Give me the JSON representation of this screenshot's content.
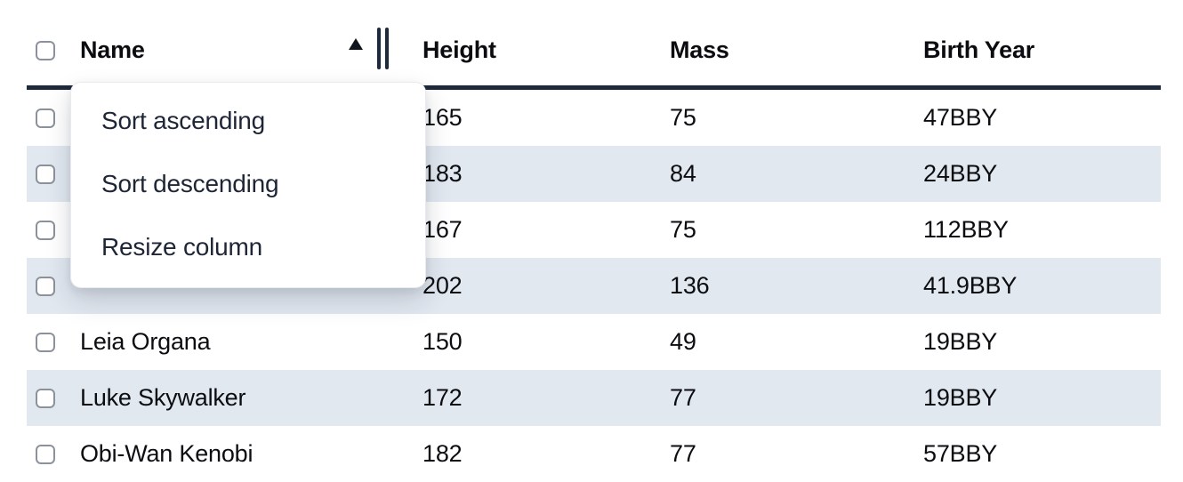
{
  "table": {
    "header": {
      "select_all_checkbox": {
        "checked": false
      },
      "columns": [
        {
          "label": "Name",
          "sort_direction": "ascending",
          "has_resize_handle": true
        },
        {
          "label": "Height"
        },
        {
          "label": "Mass"
        },
        {
          "label": "Birth Year"
        }
      ]
    },
    "rows": [
      {
        "selected": false,
        "name": "",
        "height": "165",
        "mass": "75",
        "birth_year": "47BBY"
      },
      {
        "selected": false,
        "name": "",
        "height": "183",
        "mass": "84",
        "birth_year": "24BBY"
      },
      {
        "selected": false,
        "name": "",
        "height": "167",
        "mass": "75",
        "birth_year": "112BBY"
      },
      {
        "selected": false,
        "name": "",
        "height": "202",
        "mass": "136",
        "birth_year": "41.9BBY"
      },
      {
        "selected": false,
        "name": "Leia Organa",
        "height": "150",
        "mass": "49",
        "birth_year": "19BBY"
      },
      {
        "selected": false,
        "name": "Luke Skywalker",
        "height": "172",
        "mass": "77",
        "birth_year": "19BBY"
      },
      {
        "selected": false,
        "name": "Obi-Wan Kenobi",
        "height": "182",
        "mass": "77",
        "birth_year": "57BBY"
      }
    ]
  },
  "context_menu": {
    "open_for_column": "Name",
    "items": [
      {
        "label": "Sort ascending"
      },
      {
        "label": "Sort descending"
      },
      {
        "label": "Resize column"
      }
    ]
  },
  "icons": {
    "sort_ascending_icon": "up-triangle",
    "column_resize_handle_icon": "double-vertical-bars",
    "checkbox_icon": "empty-rounded-square"
  },
  "colors": {
    "header_underline": "#1e293b",
    "row_stripe": "#e2e8f0",
    "cell_text": "#0b0d11",
    "menu_text": "#1e2636",
    "checkbox_border": "#8c929c",
    "menu_background": "#ffffff"
  }
}
